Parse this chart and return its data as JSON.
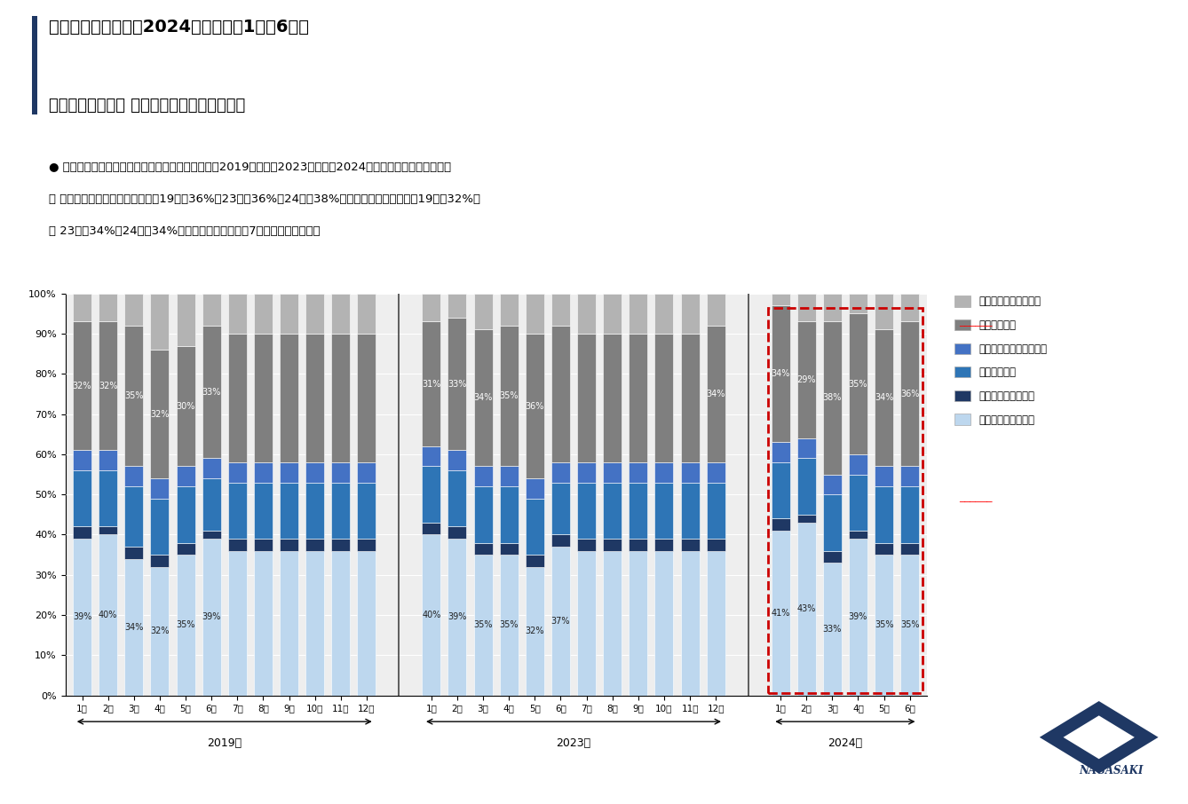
{
  "title_line1": "長崎市観光消費額　2024年上半期（1月〜6月）",
  "title_line2": "２－１．　居住地 ブロック別動向（構成比）",
  "subtitle_line1": "● 上半期通して見ると、３か年比較（コロナ禍前の2019年、前年2023年、今年2024年）でのトレンドの変化は",
  "subtitle_line2": "　 特にないが、「九州・沖縄」で19年（36%）23年（36%）24年（38%）、「関東ブロック」で19年（32%）",
  "subtitle_line3": "　 23年（34%）24年（34%）とこの２ブロックで7割以上を占めている",
  "legend_labels": [
    "北海道・東北ブロック",
    "関東ブロック",
    "北陸信越・中部ブロック",
    "近畿ブロック",
    "中国・四国ブロック",
    "九州・沖縄ブロック"
  ],
  "c_hokkaido": "#b3b3b3",
  "c_kanto": "#7f7f7f",
  "c_hokuriku": "#4472c4",
  "c_kinki": "#2e75b6",
  "c_chugoku": "#1f3864",
  "c_kyushu": "#bdd7ee",
  "years": [
    "2019年",
    "2023年",
    "2024年"
  ],
  "months_2019": [
    "1月",
    "2月",
    "3月",
    "4月",
    "5月",
    "6月",
    "7月",
    "8月",
    "9月",
    "10月",
    "11月",
    "12月"
  ],
  "months_2023": [
    "1月",
    "2月",
    "3月",
    "4月",
    "5月",
    "6月",
    "7月",
    "8月",
    "9月",
    "10月",
    "11月",
    "12月"
  ],
  "months_2024": [
    "1月",
    "2月",
    "3月",
    "4月",
    "5月",
    "6月"
  ],
  "kyushu_2019": [
    39,
    40,
    34,
    32,
    35,
    39,
    36,
    36,
    36,
    36,
    36,
    36
  ],
  "chugoku_2019": [
    3,
    2,
    3,
    3,
    3,
    2,
    3,
    3,
    3,
    3,
    3,
    3
  ],
  "kinki_2019": [
    14,
    14,
    15,
    14,
    14,
    13,
    14,
    14,
    14,
    14,
    14,
    14
  ],
  "hokuriku_2019": [
    5,
    5,
    5,
    5,
    5,
    5,
    5,
    5,
    5,
    5,
    5,
    5
  ],
  "kanto_2019": [
    32,
    32,
    35,
    32,
    30,
    33,
    32,
    32,
    32,
    32,
    32,
    32
  ],
  "hokkaido_2019": [
    7,
    7,
    8,
    14,
    13,
    8,
    10,
    10,
    10,
    10,
    10,
    10
  ],
  "kyushu_2023": [
    40,
    39,
    35,
    35,
    32,
    37,
    36,
    36,
    36,
    36,
    36,
    36
  ],
  "chugoku_2023": [
    3,
    3,
    3,
    3,
    3,
    3,
    3,
    3,
    3,
    3,
    3,
    3
  ],
  "kinki_2023": [
    14,
    14,
    14,
    14,
    14,
    13,
    14,
    14,
    14,
    14,
    14,
    14
  ],
  "hokuriku_2023": [
    5,
    5,
    5,
    5,
    5,
    5,
    5,
    5,
    5,
    5,
    5,
    5
  ],
  "kanto_2023": [
    31,
    33,
    34,
    35,
    36,
    34,
    32,
    32,
    32,
    32,
    32,
    34
  ],
  "hokkaido_2023": [
    7,
    6,
    9,
    8,
    10,
    8,
    10,
    10,
    10,
    10,
    10,
    8
  ],
  "kyushu_2024": [
    41,
    43,
    33,
    39,
    35,
    35
  ],
  "chugoku_2024": [
    3,
    2,
    3,
    2,
    3,
    3
  ],
  "kinki_2024": [
    14,
    14,
    14,
    14,
    14,
    14
  ],
  "hokuriku_2024": [
    5,
    5,
    5,
    5,
    5,
    5
  ],
  "kanto_2024": [
    34,
    29,
    38,
    35,
    34,
    36
  ],
  "hokkaido_2024": [
    3,
    7,
    7,
    5,
    9,
    7
  ],
  "kyushu_labels_2019": [
    "39%",
    "40%",
    "34%",
    "32%",
    "35%",
    "39%",
    "",
    "",
    "",
    "",
    "",
    ""
  ],
  "kanto_labels_2019": [
    "32%",
    "32%",
    "35%",
    "32%",
    "30%",
    "33%",
    "",
    "",
    "",
    "",
    "",
    ""
  ],
  "kyushu_labels_2023": [
    "40%",
    "39%",
    "35%",
    "35%",
    "32%",
    "37%",
    "",
    "",
    "",
    "",
    "",
    ""
  ],
  "kanto_labels_2023": [
    "31%",
    "33%",
    "34%",
    "35%",
    "36%",
    "",
    "",
    "",
    "",
    "",
    "",
    "34%"
  ],
  "kyushu_labels_2024": [
    "41%",
    "43%",
    "33%",
    "39%",
    "35%",
    "35%"
  ],
  "kanto_labels_2024": [
    "34%",
    "29%",
    "38%",
    "35%",
    "34%",
    "36%"
  ]
}
